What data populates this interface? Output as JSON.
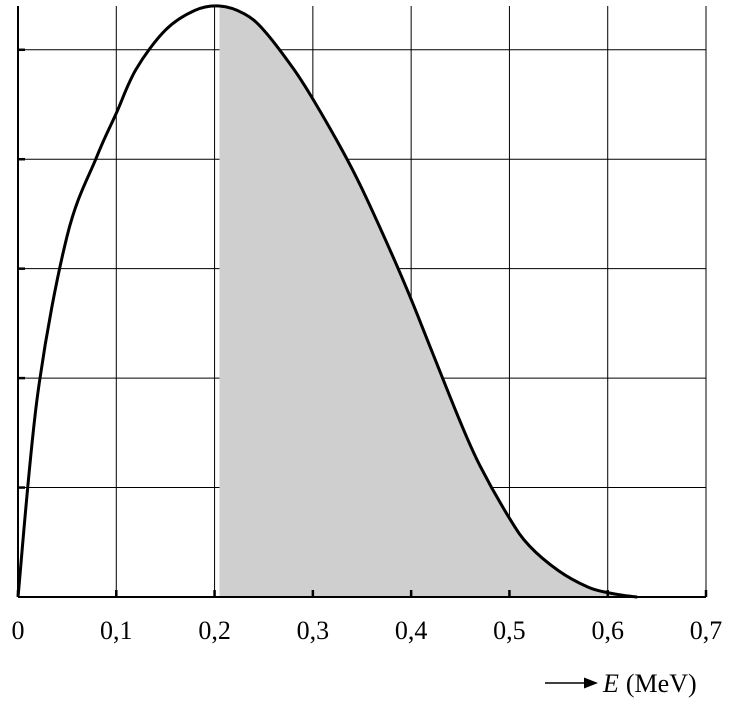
{
  "chart_data": {
    "type": "area",
    "title": "",
    "xlabel": {
      "symbol": "E",
      "unit": "(MeV)"
    },
    "ylabel": "",
    "xlim": [
      0,
      0.7
    ],
    "ylim": [
      0,
      5.4
    ],
    "x_ticks": [
      "0",
      "0,1",
      "0,2",
      "0,3",
      "0,4",
      "0,5",
      "0,6",
      "0,7"
    ],
    "x_tick_values": [
      0,
      0.1,
      0.2,
      0.3,
      0.4,
      0.5,
      0.6,
      0.7
    ],
    "y_tick_values": [
      1,
      2,
      3,
      4,
      5
    ],
    "grid": true,
    "shaded_region": {
      "from": 0.205,
      "to": 0.63
    },
    "series": [
      {
        "x": [
          0,
          0.02,
          0.05,
          0.08,
          0.1,
          0.12,
          0.15,
          0.18,
          0.205,
          0.23,
          0.25,
          0.28,
          0.3,
          0.33,
          0.35,
          0.38,
          0.4,
          0.42,
          0.45,
          0.47,
          0.5,
          0.52,
          0.55,
          0.58,
          0.6,
          0.62,
          0.63
        ],
        "y": [
          0,
          1.85,
          3.3,
          4.02,
          4.42,
          4.82,
          5.18,
          5.36,
          5.4,
          5.33,
          5.18,
          4.83,
          4.55,
          4.08,
          3.73,
          3.14,
          2.72,
          2.27,
          1.6,
          1.2,
          0.72,
          0.47,
          0.24,
          0.09,
          0.04,
          0.01,
          0.0
        ]
      }
    ]
  }
}
